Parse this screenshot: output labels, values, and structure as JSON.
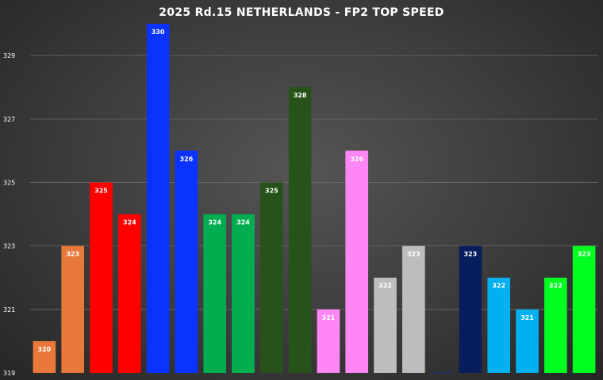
{
  "chart_data": {
    "type": "bar",
    "title": "2025 Rd.15 NETHERLANDS - FP2 TOP SPEED",
    "xlabel": "",
    "ylabel": "",
    "ylim": [
      319,
      330
    ],
    "yticks": [
      319,
      321,
      323,
      325,
      327,
      329
    ],
    "grid": true,
    "legend": "none",
    "values": [
      320,
      323,
      325,
      324,
      330,
      326,
      324,
      324,
      325,
      328,
      321,
      326,
      322,
      323,
      null,
      323,
      322,
      321,
      322,
      323
    ],
    "labels": [
      "320",
      "323",
      "325",
      "324",
      "330",
      "326",
      "324",
      "324",
      "325",
      "328",
      "321",
      "326",
      "322",
      "323",
      "",
      "323",
      "322",
      "321",
      "322",
      "323"
    ],
    "colors": [
      "#E8793A",
      "#E8793A",
      "#FF0000",
      "#FF0000",
      "#0A33FF",
      "#0A33FF",
      "#00AE50",
      "#00AE50",
      "#275219",
      "#275219",
      "#FF87F5",
      "#FF87F5",
      "#BDBDBD",
      "#BDBDBD",
      "#1E2A6B",
      "#061E5C",
      "#00B0F0",
      "#00B0F0",
      "#00FF21",
      "#00FF21"
    ]
  }
}
